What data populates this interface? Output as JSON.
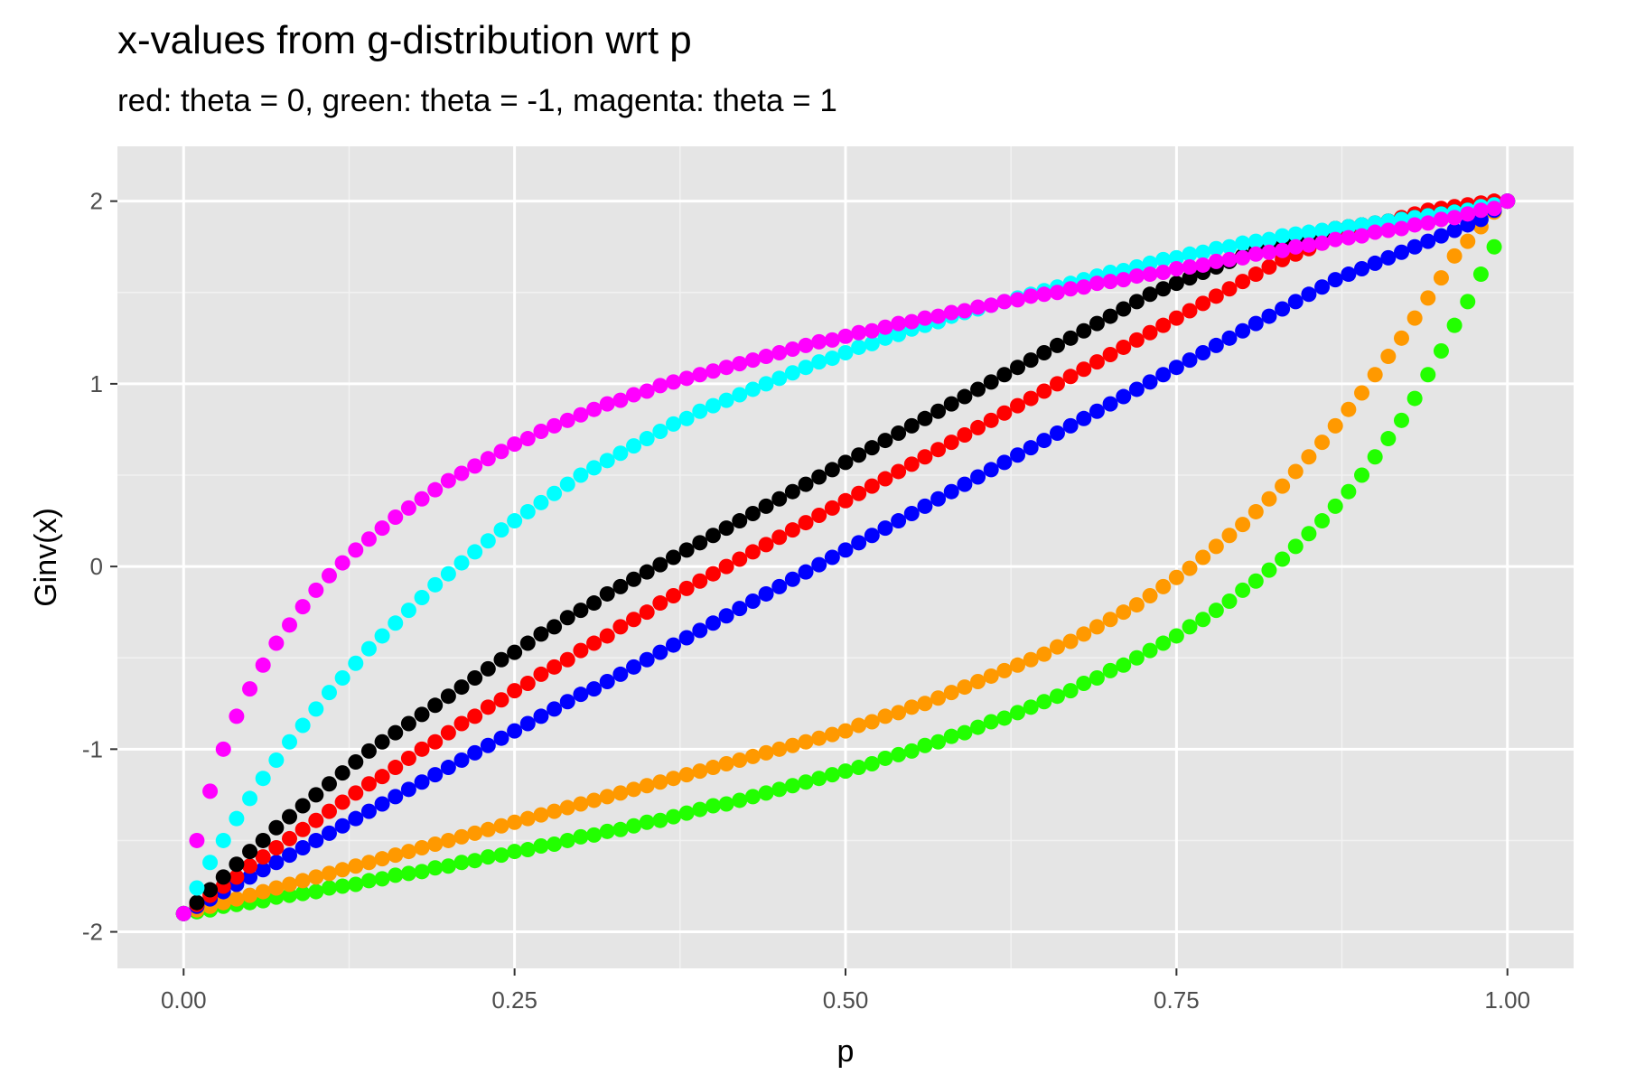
{
  "chart_data": {
    "type": "scatter",
    "title": "x-values from g-distribution wrt p",
    "subtitle": "red: theta = 0, green: theta = -1, magenta: theta = 1",
    "xlabel": "p",
    "ylabel": "Ginv(x)",
    "xlim": [
      -0.05,
      1.05
    ],
    "ylim": [
      -2.2,
      2.3
    ],
    "x_ticks": [
      0,
      0.25,
      0.5,
      0.75,
      1
    ],
    "x_tick_labels": [
      "0.00",
      "0.25",
      "0.50",
      "0.75",
      "1.00"
    ],
    "y_ticks": [
      -2,
      -1,
      0,
      1,
      2
    ],
    "y_tick_labels": [
      "-2",
      "-1",
      "0",
      "1",
      "2"
    ],
    "grid": true,
    "background": "#e5e5e5",
    "p_values": [
      0.0,
      0.01,
      0.02,
      0.03,
      0.04,
      0.05,
      0.06,
      0.07,
      0.08,
      0.09,
      0.1,
      0.11,
      0.12,
      0.13,
      0.14,
      0.15,
      0.16,
      0.17,
      0.18,
      0.19,
      0.2,
      0.21,
      0.22,
      0.23,
      0.24,
      0.25,
      0.26,
      0.27,
      0.28,
      0.29,
      0.3,
      0.31,
      0.32,
      0.33,
      0.34,
      0.35,
      0.36,
      0.37,
      0.38,
      0.39,
      0.4,
      0.41,
      0.42,
      0.43,
      0.44,
      0.45,
      0.46,
      0.47,
      0.48,
      0.49,
      0.5,
      0.51,
      0.52,
      0.53,
      0.54,
      0.55,
      0.56,
      0.57,
      0.58,
      0.59,
      0.6,
      0.61,
      0.62,
      0.63,
      0.64,
      0.65,
      0.66,
      0.67,
      0.68,
      0.69,
      0.7,
      0.71,
      0.72,
      0.73,
      0.74,
      0.75,
      0.76,
      0.77,
      0.78,
      0.79,
      0.8,
      0.81,
      0.82,
      0.83,
      0.84,
      0.85,
      0.86,
      0.87,
      0.88,
      0.89,
      0.9,
      0.91,
      0.92,
      0.93,
      0.94,
      0.95,
      0.96,
      0.97,
      0.98,
      0.99,
      1.0
    ],
    "series": [
      {
        "color": "#ff00ff",
        "values": [
          -1.9,
          -1.5,
          -1.23,
          -1.0,
          -0.82,
          -0.67,
          -0.54,
          -0.42,
          -0.32,
          -0.22,
          -0.13,
          -0.05,
          0.02,
          0.09,
          0.15,
          0.21,
          0.27,
          0.32,
          0.37,
          0.42,
          0.47,
          0.51,
          0.55,
          0.59,
          0.63,
          0.67,
          0.7,
          0.74,
          0.77,
          0.8,
          0.83,
          0.86,
          0.89,
          0.91,
          0.94,
          0.96,
          0.99,
          1.01,
          1.03,
          1.05,
          1.07,
          1.09,
          1.11,
          1.13,
          1.15,
          1.17,
          1.19,
          1.21,
          1.23,
          1.24,
          1.26,
          1.28,
          1.29,
          1.31,
          1.33,
          1.34,
          1.36,
          1.37,
          1.39,
          1.4,
          1.42,
          1.43,
          1.45,
          1.46,
          1.48,
          1.49,
          1.5,
          1.52,
          1.53,
          1.55,
          1.56,
          1.57,
          1.59,
          1.6,
          1.61,
          1.63,
          1.64,
          1.65,
          1.67,
          1.68,
          1.69,
          1.71,
          1.72,
          1.73,
          1.75,
          1.76,
          1.77,
          1.79,
          1.8,
          1.81,
          1.83,
          1.84,
          1.85,
          1.87,
          1.88,
          1.9,
          1.91,
          1.93,
          1.95,
          1.96,
          2.0
        ]
      },
      {
        "color": "#00ffff",
        "values": [
          -1.9,
          -1.76,
          -1.62,
          -1.5,
          -1.38,
          -1.27,
          -1.16,
          -1.06,
          -0.96,
          -0.87,
          -0.78,
          -0.69,
          -0.61,
          -0.53,
          -0.45,
          -0.38,
          -0.31,
          -0.24,
          -0.17,
          -0.1,
          -0.04,
          0.02,
          0.08,
          0.14,
          0.2,
          0.25,
          0.3,
          0.35,
          0.4,
          0.45,
          0.5,
          0.54,
          0.58,
          0.62,
          0.66,
          0.7,
          0.74,
          0.78,
          0.81,
          0.85,
          0.88,
          0.91,
          0.94,
          0.97,
          1.0,
          1.03,
          1.06,
          1.09,
          1.12,
          1.14,
          1.17,
          1.2,
          1.22,
          1.25,
          1.27,
          1.3,
          1.32,
          1.34,
          1.37,
          1.39,
          1.41,
          1.43,
          1.45,
          1.47,
          1.49,
          1.51,
          1.53,
          1.55,
          1.57,
          1.59,
          1.61,
          1.62,
          1.64,
          1.66,
          1.68,
          1.69,
          1.71,
          1.72,
          1.74,
          1.75,
          1.77,
          1.78,
          1.79,
          1.81,
          1.82,
          1.83,
          1.84,
          1.85,
          1.86,
          1.87,
          1.88,
          1.89,
          1.9,
          1.91,
          1.92,
          1.93,
          1.94,
          1.95,
          1.97,
          1.98,
          2.0
        ]
      },
      {
        "color": "#000000",
        "values": [
          -1.9,
          -1.84,
          -1.77,
          -1.7,
          -1.63,
          -1.56,
          -1.5,
          -1.43,
          -1.37,
          -1.31,
          -1.25,
          -1.19,
          -1.13,
          -1.07,
          -1.01,
          -0.96,
          -0.91,
          -0.86,
          -0.81,
          -0.76,
          -0.71,
          -0.66,
          -0.61,
          -0.56,
          -0.51,
          -0.47,
          -0.42,
          -0.37,
          -0.33,
          -0.28,
          -0.24,
          -0.2,
          -0.15,
          -0.11,
          -0.07,
          -0.03,
          0.01,
          0.05,
          0.09,
          0.13,
          0.17,
          0.21,
          0.25,
          0.29,
          0.33,
          0.37,
          0.41,
          0.45,
          0.49,
          0.53,
          0.57,
          0.61,
          0.65,
          0.69,
          0.73,
          0.77,
          0.81,
          0.85,
          0.89,
          0.93,
          0.97,
          1.01,
          1.05,
          1.09,
          1.13,
          1.17,
          1.21,
          1.25,
          1.29,
          1.33,
          1.37,
          1.41,
          1.45,
          1.49,
          1.52,
          1.55,
          1.58,
          1.61,
          1.64,
          1.67,
          1.7,
          1.73,
          1.75,
          1.77,
          1.79,
          1.81,
          1.83,
          1.85,
          1.86,
          1.87,
          1.88,
          1.89,
          1.9,
          1.91,
          1.92,
          1.93,
          1.94,
          1.95,
          1.96,
          1.97,
          2.0
        ]
      },
      {
        "color": "#ff0000",
        "values": [
          -1.9,
          -1.85,
          -1.8,
          -1.75,
          -1.7,
          -1.64,
          -1.59,
          -1.54,
          -1.49,
          -1.44,
          -1.39,
          -1.34,
          -1.29,
          -1.24,
          -1.19,
          -1.15,
          -1.1,
          -1.05,
          -1.0,
          -0.96,
          -0.91,
          -0.86,
          -0.82,
          -0.77,
          -0.73,
          -0.68,
          -0.64,
          -0.59,
          -0.55,
          -0.51,
          -0.46,
          -0.42,
          -0.38,
          -0.33,
          -0.29,
          -0.25,
          -0.2,
          -0.16,
          -0.12,
          -0.08,
          -0.04,
          0.0,
          0.04,
          0.08,
          0.12,
          0.16,
          0.2,
          0.24,
          0.28,
          0.32,
          0.36,
          0.4,
          0.44,
          0.48,
          0.52,
          0.56,
          0.6,
          0.64,
          0.68,
          0.72,
          0.76,
          0.8,
          0.84,
          0.88,
          0.92,
          0.96,
          1.0,
          1.04,
          1.08,
          1.12,
          1.16,
          1.2,
          1.24,
          1.28,
          1.32,
          1.36,
          1.4,
          1.44,
          1.48,
          1.52,
          1.56,
          1.6,
          1.64,
          1.68,
          1.71,
          1.74,
          1.77,
          1.8,
          1.83,
          1.85,
          1.87,
          1.89,
          1.91,
          1.93,
          1.95,
          1.96,
          1.97,
          1.98,
          1.99,
          2.0,
          2.0
        ]
      },
      {
        "color": "#0000ff",
        "values": [
          -1.9,
          -1.86,
          -1.82,
          -1.78,
          -1.74,
          -1.7,
          -1.66,
          -1.62,
          -1.58,
          -1.54,
          -1.5,
          -1.46,
          -1.42,
          -1.38,
          -1.34,
          -1.3,
          -1.26,
          -1.22,
          -1.18,
          -1.14,
          -1.1,
          -1.06,
          -1.02,
          -0.98,
          -0.94,
          -0.9,
          -0.86,
          -0.82,
          -0.78,
          -0.74,
          -0.7,
          -0.67,
          -0.63,
          -0.59,
          -0.55,
          -0.51,
          -0.47,
          -0.43,
          -0.39,
          -0.35,
          -0.31,
          -0.27,
          -0.23,
          -0.19,
          -0.15,
          -0.11,
          -0.07,
          -0.03,
          0.01,
          0.05,
          0.09,
          0.13,
          0.17,
          0.21,
          0.25,
          0.29,
          0.33,
          0.37,
          0.41,
          0.45,
          0.49,
          0.53,
          0.57,
          0.61,
          0.65,
          0.69,
          0.73,
          0.77,
          0.81,
          0.85,
          0.89,
          0.93,
          0.97,
          1.01,
          1.05,
          1.09,
          1.13,
          1.17,
          1.21,
          1.25,
          1.29,
          1.33,
          1.37,
          1.41,
          1.45,
          1.49,
          1.53,
          1.57,
          1.6,
          1.63,
          1.66,
          1.69,
          1.72,
          1.75,
          1.78,
          1.81,
          1.84,
          1.87,
          1.9,
          1.95,
          2.0
        ]
      },
      {
        "color": "#ff9900",
        "values": [
          -1.9,
          -1.88,
          -1.86,
          -1.84,
          -1.82,
          -1.8,
          -1.78,
          -1.76,
          -1.74,
          -1.72,
          -1.7,
          -1.68,
          -1.66,
          -1.64,
          -1.62,
          -1.6,
          -1.58,
          -1.56,
          -1.54,
          -1.52,
          -1.5,
          -1.48,
          -1.46,
          -1.44,
          -1.42,
          -1.4,
          -1.38,
          -1.36,
          -1.34,
          -1.32,
          -1.3,
          -1.28,
          -1.26,
          -1.24,
          -1.22,
          -1.2,
          -1.18,
          -1.16,
          -1.14,
          -1.12,
          -1.1,
          -1.08,
          -1.06,
          -1.04,
          -1.02,
          -1.0,
          -0.98,
          -0.96,
          -0.94,
          -0.92,
          -0.9,
          -0.87,
          -0.85,
          -0.82,
          -0.8,
          -0.77,
          -0.75,
          -0.72,
          -0.69,
          -0.66,
          -0.63,
          -0.6,
          -0.57,
          -0.54,
          -0.51,
          -0.48,
          -0.44,
          -0.41,
          -0.37,
          -0.33,
          -0.29,
          -0.25,
          -0.21,
          -0.16,
          -0.11,
          -0.06,
          -0.01,
          0.05,
          0.11,
          0.17,
          0.23,
          0.3,
          0.37,
          0.44,
          0.52,
          0.6,
          0.68,
          0.77,
          0.86,
          0.95,
          1.05,
          1.15,
          1.25,
          1.36,
          1.47,
          1.58,
          1.7,
          1.78,
          1.86,
          1.94,
          2.0
        ]
      },
      {
        "color": "#22ff00",
        "values": [
          -1.9,
          -1.89,
          -1.88,
          -1.86,
          -1.85,
          -1.84,
          -1.83,
          -1.81,
          -1.8,
          -1.79,
          -1.78,
          -1.76,
          -1.75,
          -1.74,
          -1.72,
          -1.71,
          -1.69,
          -1.68,
          -1.67,
          -1.65,
          -1.64,
          -1.62,
          -1.61,
          -1.59,
          -1.58,
          -1.56,
          -1.55,
          -1.53,
          -1.52,
          -1.5,
          -1.48,
          -1.47,
          -1.45,
          -1.44,
          -1.42,
          -1.4,
          -1.39,
          -1.37,
          -1.35,
          -1.33,
          -1.31,
          -1.3,
          -1.28,
          -1.26,
          -1.24,
          -1.22,
          -1.2,
          -1.18,
          -1.16,
          -1.14,
          -1.12,
          -1.1,
          -1.08,
          -1.05,
          -1.03,
          -1.01,
          -0.98,
          -0.96,
          -0.93,
          -0.91,
          -0.88,
          -0.85,
          -0.83,
          -0.8,
          -0.77,
          -0.74,
          -0.71,
          -0.68,
          -0.64,
          -0.61,
          -0.57,
          -0.54,
          -0.5,
          -0.46,
          -0.42,
          -0.38,
          -0.33,
          -0.29,
          -0.24,
          -0.19,
          -0.13,
          -0.08,
          -0.02,
          0.04,
          0.11,
          0.18,
          0.25,
          0.33,
          0.41,
          0.5,
          0.6,
          0.7,
          0.8,
          0.92,
          1.05,
          1.18,
          1.32,
          1.45,
          1.6,
          1.75,
          2.0
        ]
      }
    ]
  }
}
